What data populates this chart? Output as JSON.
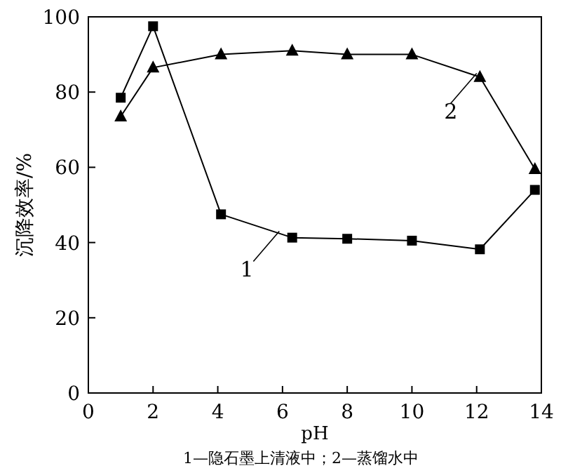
{
  "chart_data": {
    "type": "line",
    "xlabel": "pH",
    "ylabel": "沉降效率/%",
    "xlim": [
      0,
      14
    ],
    "ylim": [
      0,
      100
    ],
    "xticks": [
      0,
      2,
      4,
      6,
      8,
      10,
      12,
      14
    ],
    "yticks": [
      0,
      20,
      40,
      60,
      80,
      100
    ],
    "grid": false,
    "legend": "center",
    "annotations": [
      "1—隐石墨上清液中；2—蒸馏水中"
    ],
    "series": [
      {
        "name": "1",
        "color": "#000000",
        "marker": "square",
        "x": [
          1,
          2,
          4.1,
          6.3,
          8,
          10,
          12.1,
          13.8
        ],
        "values": [
          78.5,
          97.5,
          47.5,
          41.3,
          41,
          40.5,
          38.2,
          54
        ]
      },
      {
        "name": "2",
        "color": "#000000",
        "marker": "triangle",
        "x": [
          1,
          2,
          4.1,
          6.3,
          8,
          10,
          12.1,
          13.8
        ],
        "values": [
          73.5,
          86.5,
          90,
          91,
          90,
          90,
          84,
          59.5
        ]
      }
    ]
  }
}
